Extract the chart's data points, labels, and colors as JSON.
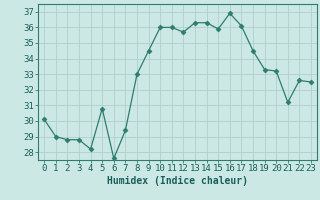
{
  "x": [
    0,
    1,
    2,
    3,
    4,
    5,
    6,
    7,
    8,
    9,
    10,
    11,
    12,
    13,
    14,
    15,
    16,
    17,
    18,
    19,
    20,
    21,
    22,
    23
  ],
  "y": [
    30.1,
    29.0,
    28.8,
    28.8,
    28.2,
    30.8,
    27.6,
    29.4,
    33.0,
    34.5,
    36.0,
    36.0,
    35.7,
    36.3,
    36.3,
    35.9,
    36.9,
    36.1,
    34.5,
    33.3,
    33.2,
    31.2,
    32.6,
    32.5
  ],
  "line_color": "#2e7d6e",
  "marker": "D",
  "marker_size": 2.5,
  "bg_color": "#cce8e5",
  "grid_color": "#b0d0cc",
  "ylim": [
    27.5,
    37.5
  ],
  "xlim": [
    -0.5,
    23.5
  ],
  "yticks": [
    28,
    29,
    30,
    31,
    32,
    33,
    34,
    35,
    36,
    37
  ],
  "xticks": [
    0,
    1,
    2,
    3,
    4,
    5,
    6,
    7,
    8,
    9,
    10,
    11,
    12,
    13,
    14,
    15,
    16,
    17,
    18,
    19,
    20,
    21,
    22,
    23
  ],
  "xlabel": "Humidex (Indice chaleur)",
  "xlabel_fontsize": 7,
  "tick_fontsize": 6.5,
  "tick_color": "#1a5f5a",
  "spine_color": "#2e7d6e"
}
